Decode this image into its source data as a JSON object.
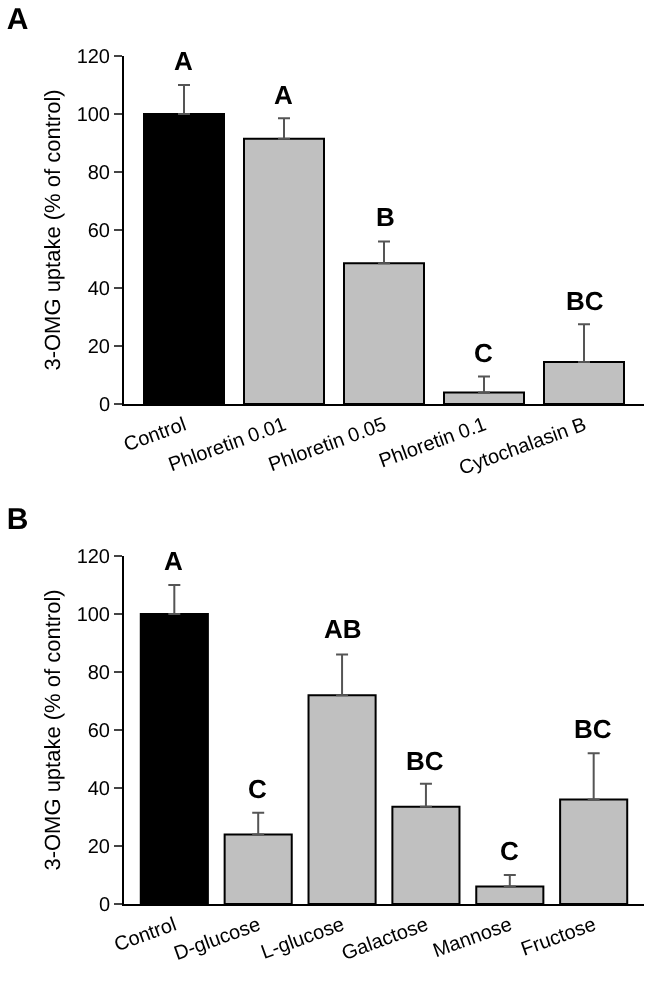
{
  "chart_data": [
    {
      "type": "bar",
      "title": "A",
      "ylabel": "3-OMG uptake (% of control)",
      "categories": [
        "Control",
        "Phloretin 0.01",
        "Phloretin 0.05",
        "Phloretin 0.1",
        "Cytochalasin B"
      ],
      "values": [
        100,
        91.5,
        48.5,
        4,
        14.5
      ],
      "colors": [
        "#000000",
        "#c0c0c0",
        "#c0c0c0",
        "#c0c0c0",
        "#c0c0c0"
      ],
      "errors": [
        [
          100,
          110
        ],
        [
          91.5,
          98.5
        ],
        [
          48.5,
          56
        ],
        [
          4,
          9.5
        ],
        [
          14.5,
          27.5
        ]
      ],
      "ylim": [
        0,
        120
      ],
      "yticks": [
        0,
        20,
        40,
        60,
        80,
        100,
        120
      ],
      "grid": false,
      "annotations": [
        {
          "text": "A",
          "x": "Control",
          "y": 112
        },
        {
          "text": "A",
          "x": "Phloretin 0.01",
          "y": 100
        },
        {
          "text": "B",
          "x": "Phloretin 0.05",
          "y": 58
        },
        {
          "text": "C",
          "x": "Phloretin 0.1",
          "y": 11
        },
        {
          "text": "BC",
          "x": "Cytochalasin B",
          "y": 29
        }
      ]
    },
    {
      "type": "bar",
      "title": "B",
      "ylabel": "3-OMG uptake (% of control)",
      "categories": [
        "Control",
        "D-glucose",
        "L-glucose",
        "Galactose",
        "Mannose",
        "Fructose"
      ],
      "values": [
        100,
        24,
        72,
        33.5,
        6,
        36
      ],
      "colors": [
        "#000000",
        "#c0c0c0",
        "#c0c0c0",
        "#c0c0c0",
        "#c0c0c0",
        "#c0c0c0"
      ],
      "errors": [
        [
          100,
          110
        ],
        [
          24,
          31.5
        ],
        [
          72,
          86
        ],
        [
          33.5,
          41.5
        ],
        [
          6,
          10
        ],
        [
          36,
          52
        ]
      ],
      "ylim": [
        0,
        120
      ],
      "yticks": [
        0,
        20,
        40,
        60,
        80,
        100,
        120
      ],
      "grid": false,
      "annotations": [
        {
          "text": "A",
          "x": "Control",
          "y": 112
        },
        {
          "text": "C",
          "x": "D-glucose",
          "y": 33
        },
        {
          "text": "AB",
          "x": "L-glucose",
          "y": 88
        },
        {
          "text": "BC",
          "x": "Galactose",
          "y": 43
        },
        {
          "text": "C",
          "x": "Mannose",
          "y": 12
        },
        {
          "text": "BC",
          "x": "Fructose",
          "y": 54
        }
      ]
    }
  ]
}
